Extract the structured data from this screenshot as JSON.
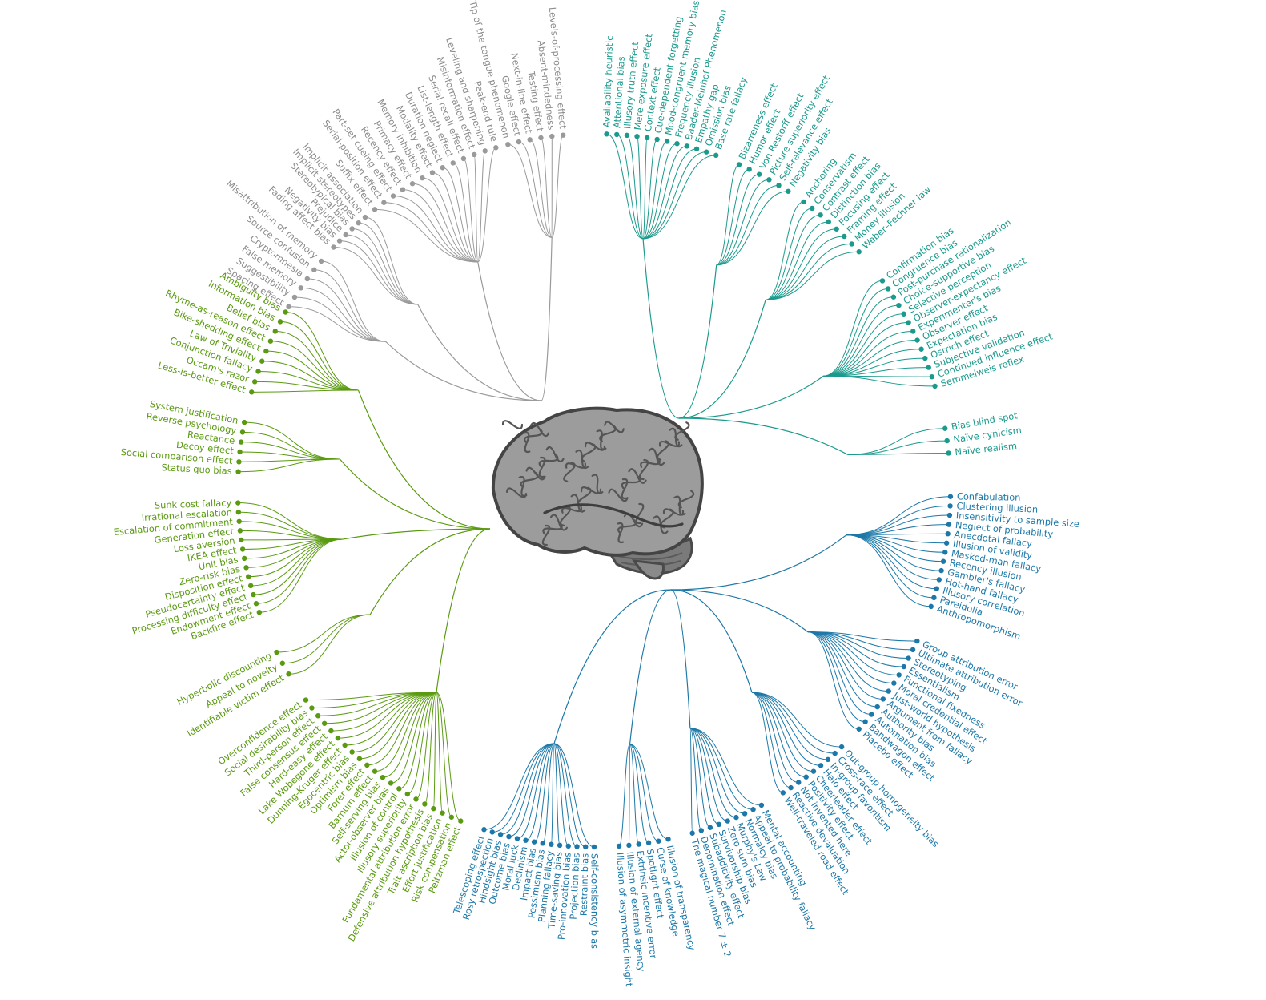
{
  "colors": {
    "gray": "#9a9a9a",
    "teal": "#1a9a8c",
    "blue": "#1c78a8",
    "green": "#5a9a10"
  },
  "center_image": "brain-icon",
  "groups": [
    {
      "color": "gray",
      "labels": [
        "Tip of the tongue phenomenon",
        "Google effect",
        "Next-in-line effect",
        "Testing effect",
        "Absent-mindedness",
        "Levels-of-processing effect"
      ]
    },
    {
      "color": "gray",
      "labels": [
        "Suffix effect",
        "Serial-position effect",
        "Part-set cueing effect",
        "Recency effect",
        "Primacy effect",
        "Memory inhibition",
        "Modality effect",
        "Duration neglect",
        "List-length effect",
        "Serial recall effect",
        "Misinformation effect",
        "Leveling and sharpening",
        "Peak-end rule"
      ]
    },
    {
      "color": "gray",
      "labels": [
        "Fading affect bias",
        "Negativity bias",
        "Prejudice",
        "Stereotypical bias",
        "Implicit stereotypes",
        "Implicit association"
      ]
    },
    {
      "color": "gray",
      "labels": [
        "Spacing effect",
        "Suggestibility",
        "False memory",
        "Cryptomnesia",
        "Source confusion",
        "Misattribution of memory"
      ]
    },
    {
      "color": "teal",
      "labels": [
        "Availability heuristic",
        "Attentional bias",
        "Illusory truth effect",
        "Mere-exposure effect",
        "Context effect",
        "Cue-dependent forgetting",
        "Mood-congruent memory bias",
        "Frequency illusion",
        "Baader-Meinhof Phenomenon",
        "Empathy gap",
        "Omission bias",
        "Base rate fallacy"
      ]
    },
    {
      "color": "teal",
      "labels": [
        "Bizarreness effect",
        "Humor effect",
        "Von Restorff effect",
        "Picture superiority effect",
        "Self-relevance effect",
        "Negativity bias"
      ]
    },
    {
      "color": "teal",
      "labels": [
        "Anchoring",
        "Conservatism",
        "Contrast effect",
        "Distinction bias",
        "Focusing effect",
        "Framing effect",
        "Money illusion",
        "Weber–Fechner law"
      ]
    },
    {
      "color": "teal",
      "labels": [
        "Confirmation bias",
        "Congruence bias",
        "Post-purchase rationalization",
        "Choice-supportive bias",
        "Selective perception",
        "Observer-expectancy effect",
        "Experimenter's bias",
        "Observer effect",
        "Expectation bias",
        "Ostrich effect",
        "Subjective validation",
        "Continued influence effect",
        "Semmelweis reflex"
      ]
    },
    {
      "color": "teal",
      "labels": [
        "Bias blind spot",
        "Naïve cynicism",
        "Naïve realism"
      ]
    },
    {
      "color": "blue",
      "labels": [
        "Confabulation",
        "Clustering illusion",
        "Insensitivity to sample size",
        "Neglect of probability",
        "Anecdotal fallacy",
        "Illusion of validity",
        "Masked-man fallacy",
        "Recency illusion",
        "Gambler's fallacy",
        "Hot-hand fallacy",
        "Illusory correlation",
        "Pareidolia",
        "Anthropomorphism"
      ]
    },
    {
      "color": "blue",
      "labels": [
        "Group attribution error",
        "Ultimate attribution error",
        "Stereotyping",
        "Essentialism",
        "Functional fixedness",
        "Moral credential effect",
        "Just-world hypothesis",
        "Argument from fallacy",
        "Authority bias",
        "Automation bias",
        "Bandwagon effect",
        "Placebo effect"
      ]
    },
    {
      "color": "blue",
      "labels": [
        "Out-group homogeneity bias",
        "Cross-race effect",
        "In-group favoritism",
        "Halo effect",
        "Cheerleader effect",
        "Positivity effect",
        "Not invented here",
        "Reactive devaluation",
        "Well-traveled road effect"
      ]
    },
    {
      "color": "blue",
      "labels": [
        "Mental accounting",
        "Appeal to probability fallacy",
        "Normalcy bias",
        "Murphy's Law",
        "Zero sum bias",
        "Survivorship bias",
        "Subadditivity effect",
        "Denomination effect",
        "The magical number 7 ± 2"
      ]
    },
    {
      "color": "blue",
      "labels": [
        "Illusion of transparency",
        "Curse of knowledge",
        "Spotlight effect",
        "Extrinsic incentive error",
        "Illusion of external agency",
        "Illusion of asymmetric insight"
      ]
    },
    {
      "color": "blue",
      "labels": [
        "Self-consistency bias",
        "Restraint bias",
        "Projection bias",
        "Pro-innovation bias",
        "Time-saving bias",
        "Planning fallacy",
        "Pessimism bias",
        "Impact bias",
        "Declinism",
        "Moral luck",
        "Outcome bias",
        "Hindsight bias",
        "Rosy retrospection",
        "Telescoping effect"
      ]
    },
    {
      "color": "green",
      "labels": [
        "Peltzman effect",
        "Risk compensation",
        "Effort justification",
        "Trait ascription bias",
        "Defensive attribution hypothesis",
        "Fundamental attribution error",
        "Illusory superiority",
        "Illusion of control",
        "Actor-observer bias",
        "Self-serving bias",
        "Barnum effect",
        "Forer effect",
        "Optimism bias",
        "Egocentric bias",
        "Dunning-Kruger effect",
        "Lake Wobegone effect",
        "Hard-easy effect",
        "False consensus effect",
        "Third-person effect",
        "Social desirability bias",
        "Overconfidence effect"
      ]
    },
    {
      "color": "green",
      "labels": [
        "Identifiable victim effect",
        "Appeal to novelty",
        "Hyperbolic discounting"
      ]
    },
    {
      "color": "green",
      "labels": [
        "Backfire effect",
        "Endowment effect",
        "Processing difficulty effect",
        "Pseudocertainty effect",
        "Disposition effect",
        "Zero-risk bias",
        "Unit bias",
        "IKEA effect",
        "Loss aversion",
        "Generation effect",
        "Escalation of commitment",
        "Irrational escalation",
        "Sunk cost fallacy"
      ]
    },
    {
      "color": "green",
      "labels": [
        "Status quo bias",
        "Social comparison effect",
        "Decoy effect",
        "Reactance",
        "Reverse psychology",
        "System justification"
      ]
    },
    {
      "color": "green",
      "labels": [
        "Less-is-better effect",
        "Occam's razor",
        "Conjunction fallacy",
        "Law of Triviality",
        "Bike-shedding effect",
        "Rhyme-as-reason effect",
        "Belief bias",
        "Information bias",
        "Ambiguity bias"
      ]
    }
  ]
}
